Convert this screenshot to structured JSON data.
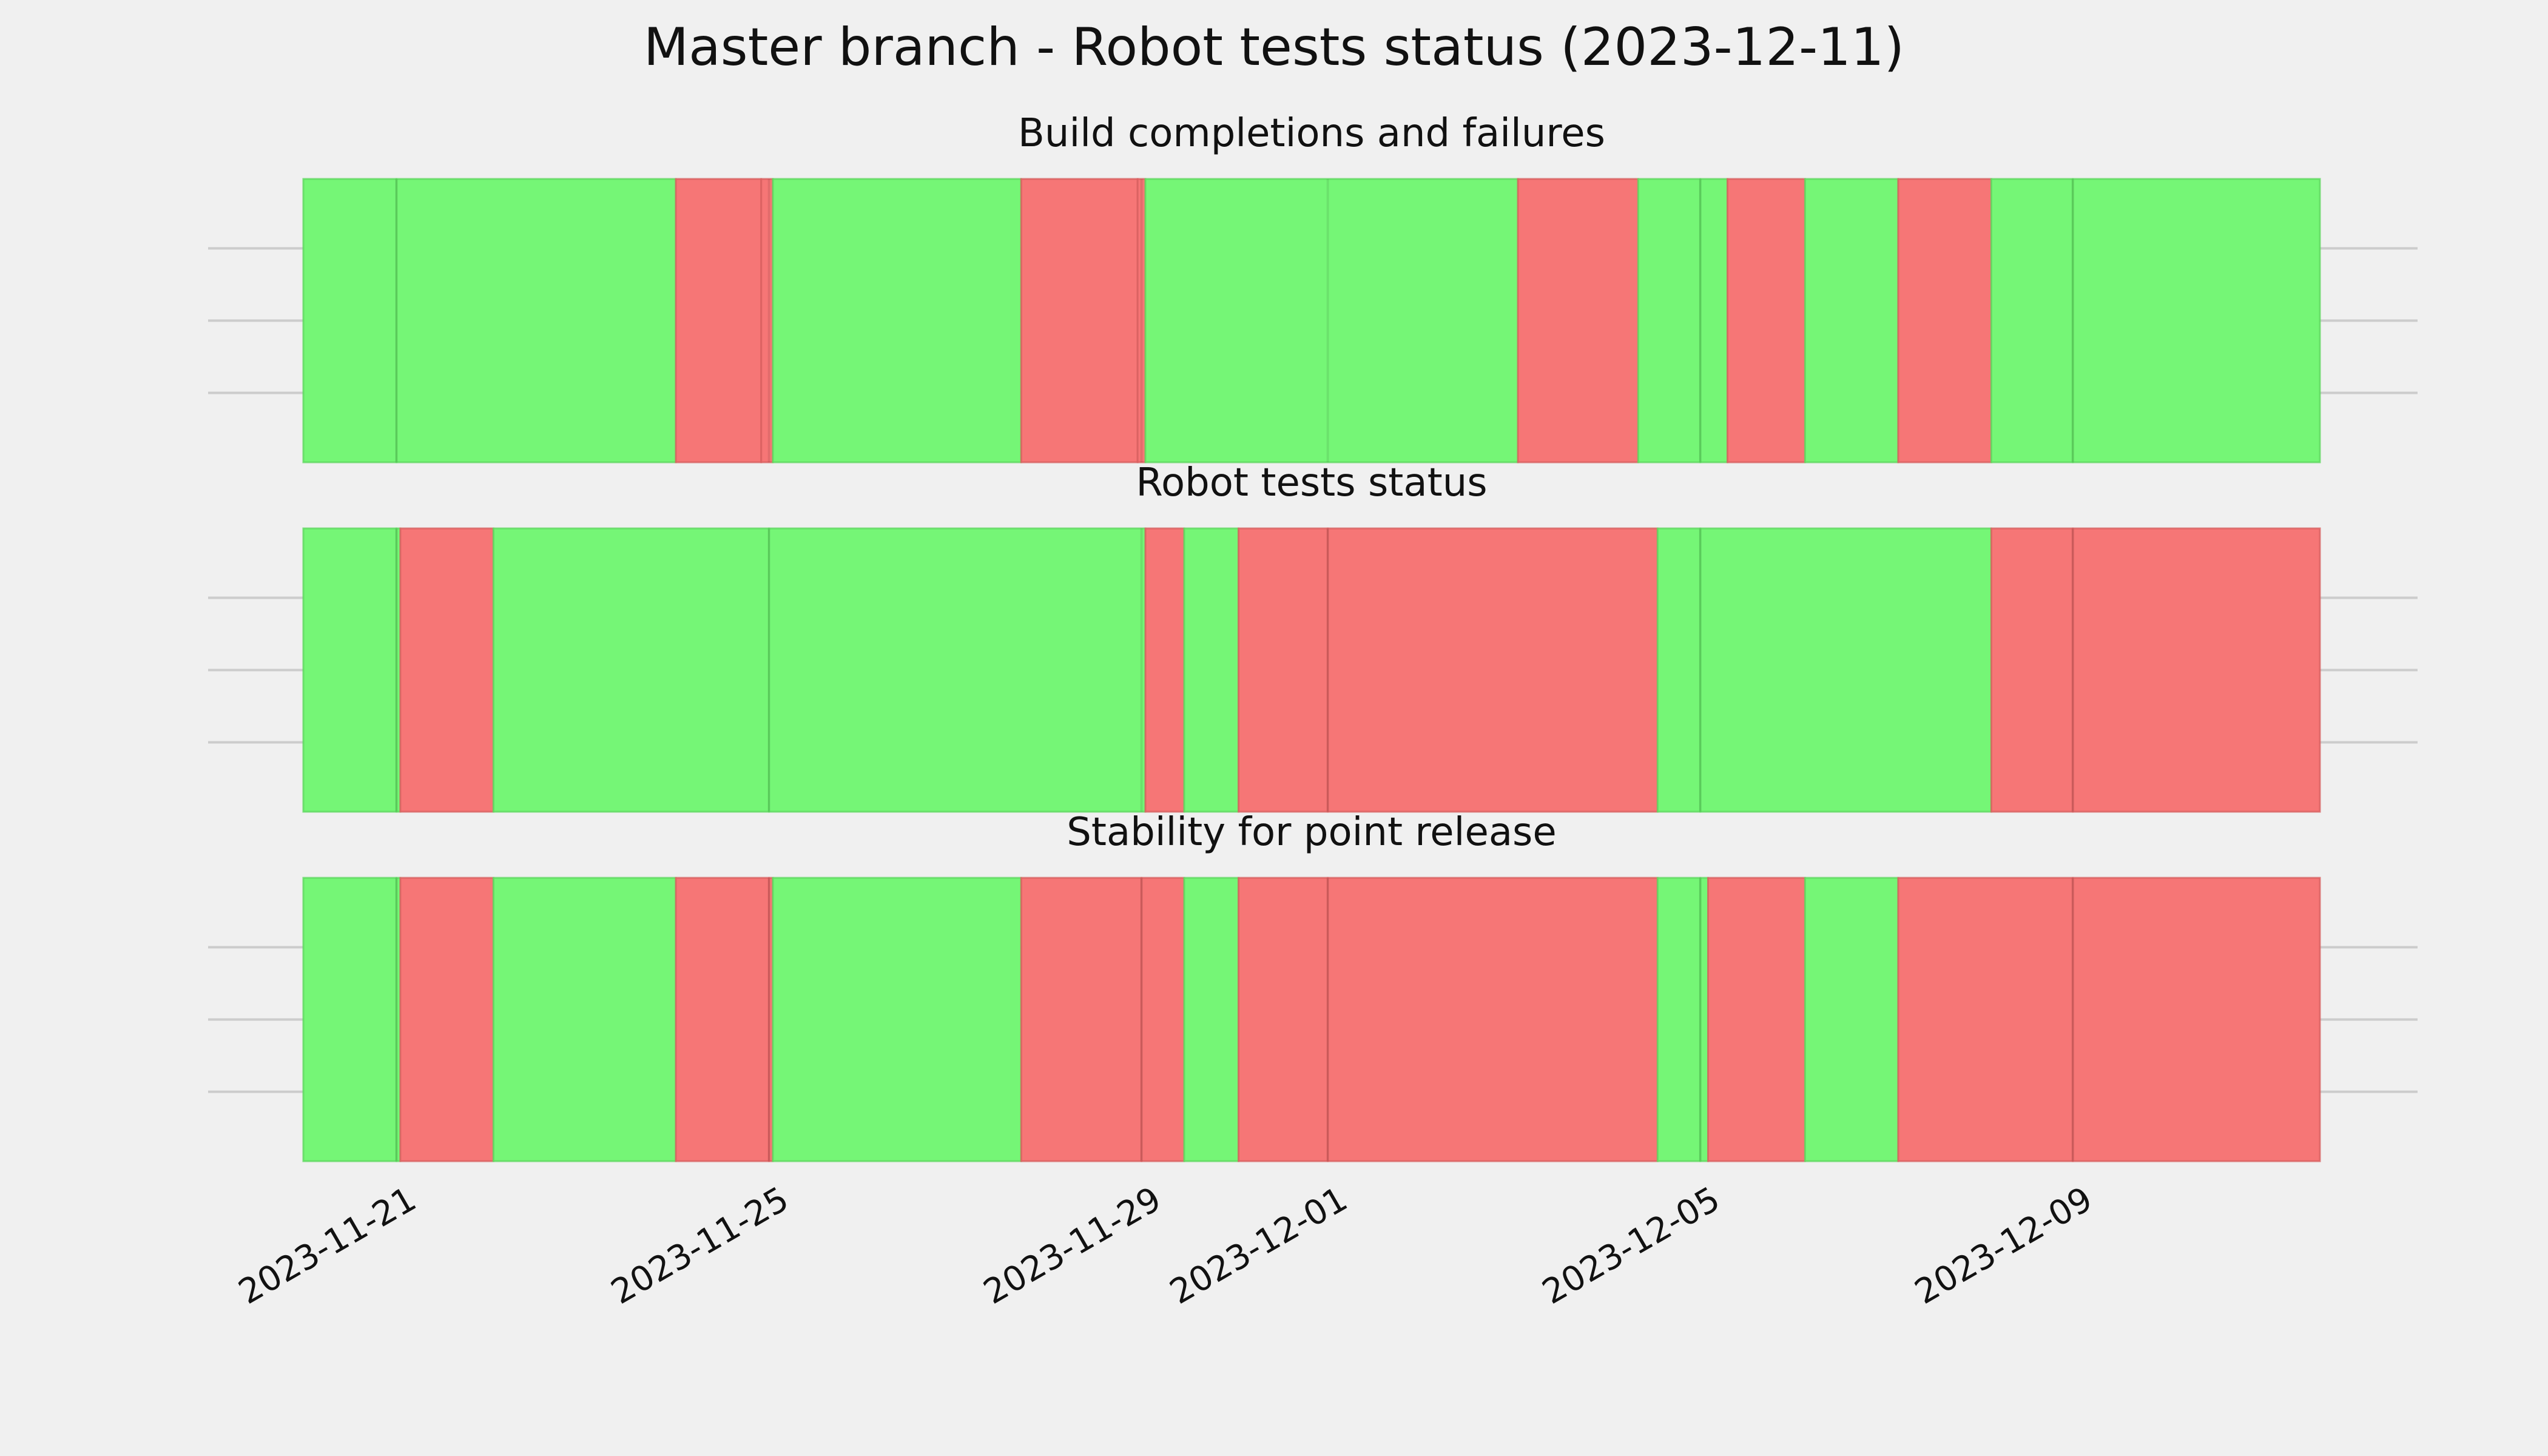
{
  "chart_data": {
    "type": "timeline-status",
    "title": "Master branch - Robot tests status (2023-12-11)",
    "x_axis": {
      "type": "date",
      "range": [
        "2023-11-20T00:00",
        "2023-12-11T15:40"
      ],
      "tick_labels": [
        "2023-11-21",
        "2023-11-25",
        "2023-11-29",
        "2023-12-01",
        "2023-12-05",
        "2023-12-09"
      ]
    },
    "colors": {
      "pass": "#75f676",
      "fail": "#f67676",
      "gridline": "#cccccc",
      "background": "#f0f0f0"
    },
    "grid": true,
    "panels": [
      {
        "title": "Build completions and failures",
        "segments": [
          {
            "start": "2023-11-20T00:00",
            "end": "2023-11-21T00:00",
            "status": "pass"
          },
          {
            "start": "2023-11-21T00:00",
            "end": "2023-11-24T00:00",
            "status": "pass"
          },
          {
            "start": "2023-11-24T00:00",
            "end": "2023-11-24T22:00",
            "status": "fail"
          },
          {
            "start": "2023-11-24T22:00",
            "end": "2023-11-25T01:00",
            "status": "fail"
          },
          {
            "start": "2023-11-25T01:00",
            "end": "2023-11-27T17:00",
            "status": "pass"
          },
          {
            "start": "2023-11-27T17:00",
            "end": "2023-11-28T23:00",
            "status": "fail"
          },
          {
            "start": "2023-11-28T23:00",
            "end": "2023-11-29T01:00",
            "status": "fail"
          },
          {
            "start": "2023-11-29T01:00",
            "end": "2023-12-03T01:00",
            "status": "pass"
          },
          {
            "start": "2023-12-03T01:00",
            "end": "2023-12-04T08:00",
            "status": "fail"
          },
          {
            "start": "2023-12-04T08:00",
            "end": "2023-12-05T00:00",
            "status": "pass"
          },
          {
            "start": "2023-12-05T00:00",
            "end": "2023-12-05T07:00",
            "status": "pass"
          },
          {
            "start": "2023-12-05T07:00",
            "end": "2023-12-06T03:00",
            "status": "fail"
          },
          {
            "start": "2023-12-06T03:00",
            "end": "2023-12-07T03:00",
            "status": "pass"
          },
          {
            "start": "2023-12-07T03:00",
            "end": "2023-12-08T03:00",
            "status": "fail"
          },
          {
            "start": "2023-12-08T03:00",
            "end": "2023-12-09T00:00",
            "status": "pass"
          },
          {
            "start": "2023-12-09T00:00",
            "end": "2023-12-11T15:40",
            "status": "pass"
          }
        ]
      },
      {
        "title": "Robot tests status",
        "segments": [
          {
            "start": "2023-11-20T00:00",
            "end": "2023-11-21T00:00",
            "status": "pass"
          },
          {
            "start": "2023-11-21T00:00",
            "end": "2023-11-21T01:00",
            "status": "pass"
          },
          {
            "start": "2023-11-21T01:00",
            "end": "2023-11-22T01:00",
            "status": "fail"
          },
          {
            "start": "2023-11-22T01:00",
            "end": "2023-11-25T00:00",
            "status": "pass"
          },
          {
            "start": "2023-11-25T00:00",
            "end": "2023-11-29T01:00",
            "status": "pass"
          },
          {
            "start": "2023-11-29T01:00",
            "end": "2023-11-29T11:00",
            "status": "fail"
          },
          {
            "start": "2023-11-29T11:00",
            "end": "2023-11-30T01:00",
            "status": "pass"
          },
          {
            "start": "2023-11-30T01:00",
            "end": "2023-12-01T00:00",
            "status": "fail"
          },
          {
            "start": "2023-12-01T00:00",
            "end": "2023-12-04T13:00",
            "status": "fail"
          },
          {
            "start": "2023-12-04T13:00",
            "end": "2023-12-05T00:00",
            "status": "pass"
          },
          {
            "start": "2023-12-05T00:00",
            "end": "2023-12-08T03:00",
            "status": "pass"
          },
          {
            "start": "2023-12-08T03:00",
            "end": "2023-12-09T00:00",
            "status": "fail"
          },
          {
            "start": "2023-12-09T00:00",
            "end": "2023-12-11T15:40",
            "status": "fail"
          }
        ]
      },
      {
        "title": "Stability for point release",
        "segments": [
          {
            "start": "2023-11-20T00:00",
            "end": "2023-11-21T00:00",
            "status": "pass"
          },
          {
            "start": "2023-11-21T00:00",
            "end": "2023-11-21T01:00",
            "status": "pass"
          },
          {
            "start": "2023-11-21T01:00",
            "end": "2023-11-22T01:00",
            "status": "fail"
          },
          {
            "start": "2023-11-22T01:00",
            "end": "2023-11-24T00:00",
            "status": "pass"
          },
          {
            "start": "2023-11-24T00:00",
            "end": "2023-11-25T00:00",
            "status": "fail"
          },
          {
            "start": "2023-11-25T00:00",
            "end": "2023-11-25T01:00",
            "status": "fail"
          },
          {
            "start": "2023-11-25T01:00",
            "end": "2023-11-27T17:00",
            "status": "pass"
          },
          {
            "start": "2023-11-27T17:00",
            "end": "2023-11-29T00:00",
            "status": "fail"
          },
          {
            "start": "2023-11-29T00:00",
            "end": "2023-11-29T11:00",
            "status": "fail"
          },
          {
            "start": "2023-11-29T11:00",
            "end": "2023-11-30T01:00",
            "status": "pass"
          },
          {
            "start": "2023-11-30T01:00",
            "end": "2023-12-01T00:00",
            "status": "fail"
          },
          {
            "start": "2023-12-01T00:00",
            "end": "2023-12-04T13:00",
            "status": "fail"
          },
          {
            "start": "2023-12-04T13:00",
            "end": "2023-12-05T00:00",
            "status": "pass"
          },
          {
            "start": "2023-12-05T00:00",
            "end": "2023-12-05T02:00",
            "status": "pass"
          },
          {
            "start": "2023-12-05T02:00",
            "end": "2023-12-06T03:00",
            "status": "fail"
          },
          {
            "start": "2023-12-06T03:00",
            "end": "2023-12-07T03:00",
            "status": "pass"
          },
          {
            "start": "2023-12-07T03:00",
            "end": "2023-12-09T00:00",
            "status": "fail"
          },
          {
            "start": "2023-12-09T00:00",
            "end": "2023-12-11T15:40",
            "status": "fail"
          }
        ]
      }
    ]
  }
}
